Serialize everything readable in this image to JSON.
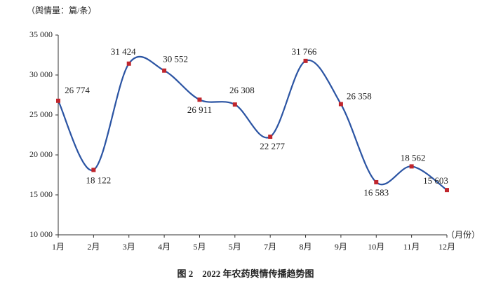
{
  "chart_data": {
    "type": "line",
    "title": "图 2　2022 年农药舆情传播趋势图",
    "y_label": "（舆情量：篇/条）",
    "x_label": "（月份）",
    "categories": [
      "1月",
      "2月",
      "3月",
      "4月",
      "5月",
      "5月",
      "7月",
      "8月",
      "9月",
      "10月",
      "11月",
      "12月"
    ],
    "series": [
      {
        "name": "舆情量",
        "color": "#2b54a3",
        "marker_color": "#c0262d",
        "values": [
          26774,
          18122,
          31424,
          30552,
          26911,
          26308,
          22277,
          31766,
          26358,
          16583,
          18562,
          15603
        ],
        "value_labels": [
          "26 774",
          "18 122",
          "31 424",
          "30 552",
          "26 911",
          "26 308",
          "22 277",
          "31 766",
          "26 358",
          "16 583",
          "18 562",
          "15 603"
        ]
      }
    ],
    "ylim": [
      10000,
      35000
    ],
    "yticks": [
      {
        "value": 10000,
        "label": "10 000"
      },
      {
        "value": 15000,
        "label": "15 000"
      },
      {
        "value": 20000,
        "label": "20 000"
      },
      {
        "value": 25000,
        "label": "25 000"
      },
      {
        "value": 30000,
        "label": "30 000"
      },
      {
        "value": 35000,
        "label": "35 000"
      }
    ],
    "grid": false
  }
}
